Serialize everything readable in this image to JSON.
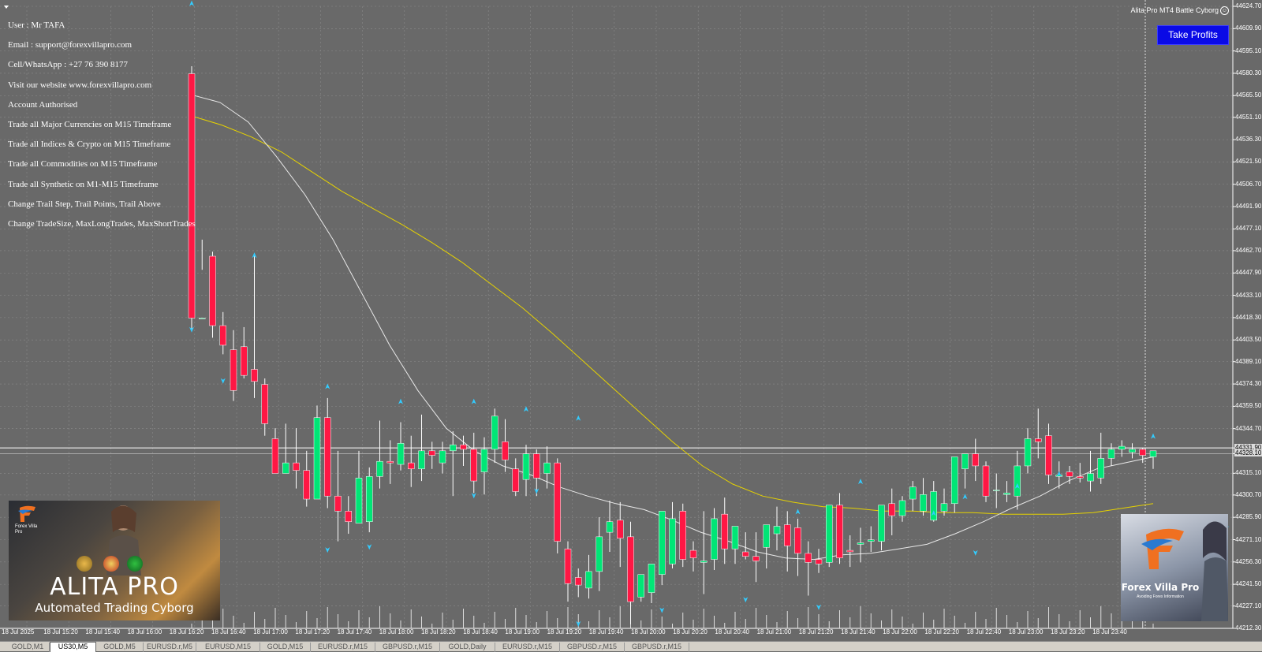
{
  "app": {
    "title": "Alita Pro MT4 Battle Cyborg"
  },
  "info_lines": [
    "User : Mr TAFA",
    "Email : support@forexvillapro.com",
    "Cell/WhatsApp : +27 76 390 8177",
    "Visit our website www.forexvillapro.com",
    "Account Authorised",
    "Trade all Major Currencies on M15 Timeframe",
    "Trade all Indices & Crypto on M15 Timeframe",
    "Trade all Commodities on M15 Timeframe",
    "Trade all Synthetic on M1-M15 Timeframe",
    "Change Trail Step, Trail Points, Trail Above",
    "Change TradeSize, MaxLongTrades, MaxShortTrades"
  ],
  "take_profits_label": "Take Profits",
  "logo_left": {
    "title": "ALITA PRO",
    "subtitle": "Automated Trading Cyborg",
    "brand": "Forex Villa Pro"
  },
  "logo_right": {
    "title": "Forex Villa Pro",
    "subtitle": "Avoiding Forex Information"
  },
  "price_axis": {
    "labels": [
      "44624.70",
      "44609.90",
      "44595.10",
      "44580.30",
      "44565.50",
      "44551.10",
      "44536.30",
      "44521.50",
      "44506.70",
      "44491.90",
      "44477.10",
      "44462.70",
      "44447.90",
      "44433.10",
      "44418.30",
      "44403.50",
      "44389.10",
      "44374.30",
      "44359.50",
      "44344.70",
      "44331.90",
      "44328.10",
      "44315.10",
      "44300.70",
      "44285.90",
      "44271.10",
      "44256.30",
      "44241.50",
      "44227.10",
      "44212.30"
    ],
    "highlighted": [
      "44331.90",
      "44328.10"
    ]
  },
  "time_axis": {
    "labels": [
      "18 Jul 2025",
      "18 Jul 15:20",
      "18 Jul 15:40",
      "18 Jul 16:00",
      "18 Jul 16:20",
      "18 Jul 16:40",
      "18 Jul 17:00",
      "18 Jul 17:20",
      "18 Jul 17:40",
      "18 Jul 18:00",
      "18 Jul 18:20",
      "18 Jul 18:40",
      "18 Jul 19:00",
      "18 Jul 19:20",
      "18 Jul 19:40",
      "18 Jul 20:00",
      "18 Jul 20:20",
      "18 Jul 20:40",
      "18 Jul 21:00",
      "18 Jul 21:20",
      "18 Jul 21:40",
      "18 Jul 22:00",
      "18 Jul 22:20",
      "18 Jul 22:40",
      "18 Jul 23:00",
      "18 Jul 23:20",
      "18 Jul 23:40"
    ]
  },
  "tabs": [
    {
      "label": "GOLD,M1",
      "active": false
    },
    {
      "label": "US30,M5",
      "active": true
    },
    {
      "label": "GOLD,M5",
      "active": false
    },
    {
      "label": "EURUSD.r,M5",
      "active": false
    },
    {
      "label": "EURUSD,M15",
      "active": false
    },
    {
      "label": "GOLD,M15",
      "active": false
    },
    {
      "label": "EURUSD.r,M15",
      "active": false
    },
    {
      "label": "GBPUSD.r,M15",
      "active": false
    },
    {
      "label": "GOLD,Daily",
      "active": false
    },
    {
      "label": "EURUSD.r,M15",
      "active": false
    },
    {
      "label": "GBPUSD.r,M15",
      "active": false
    },
    {
      "label": "GBPUSD.r,M15",
      "active": false
    }
  ],
  "colors": {
    "background": "#696969",
    "grid": "#8a8a8a",
    "bull_candle": "#00e676",
    "bear_candle": "#ff1744",
    "fast_ma": "#e8e8e8",
    "slow_ma": "#e6d200",
    "arrow": "#33ccff",
    "button": "#0a0ae6"
  },
  "chart_data": {
    "type": "candlestick",
    "symbol": "US30",
    "timeframe": "M5",
    "ylim": [
      44212.3,
      44624.7
    ],
    "candles": [
      [
        44580,
        44585,
        44418,
        44410
      ],
      [
        44418,
        44470,
        44418,
        44450
      ],
      [
        44459,
        44462,
        44413,
        44405
      ],
      [
        44413,
        44422,
        44400,
        44394
      ],
      [
        44397,
        44410,
        44370,
        44363
      ],
      [
        44399,
        44412,
        44380,
        44378
      ],
      [
        44384,
        44460,
        44376,
        44365
      ],
      [
        44374,
        44378,
        44348,
        44340
      ],
      [
        44338,
        44345,
        44315,
        44315
      ],
      [
        44315,
        44348,
        44322,
        44318
      ],
      [
        44322,
        44345,
        44317,
        44305
      ],
      [
        44317,
        44330,
        44298,
        44293
      ],
      [
        44298,
        44360,
        44352,
        44350
      ],
      [
        44352,
        44365,
        44300,
        44292
      ],
      [
        44300,
        44330,
        44290,
        44270
      ],
      [
        44290,
        44300,
        44283,
        44275
      ],
      [
        44282,
        44330,
        44312,
        44302
      ],
      [
        44283,
        44319,
        44313,
        44276
      ],
      [
        44313,
        44350,
        44323,
        44305
      ],
      [
        44323,
        44337,
        44322,
        44308
      ],
      [
        44321,
        44349,
        44335,
        44317
      ],
      [
        44322,
        44340,
        44318,
        44306
      ],
      [
        44318,
        44354,
        44330,
        44310
      ],
      [
        44330,
        44336,
        44327,
        44318
      ],
      [
        44322,
        44336,
        44330,
        44315
      ],
      [
        44330,
        44343,
        44334,
        44300
      ],
      [
        44334,
        44340,
        44331,
        44320
      ],
      [
        44331,
        44342,
        44310,
        44302
      ],
      [
        44316,
        44339,
        44331,
        44301
      ],
      [
        44331,
        44358,
        44353,
        44322
      ],
      [
        44336,
        44351,
        44324,
        44316
      ],
      [
        44318,
        44325,
        44303,
        44300
      ],
      [
        44311,
        44334,
        44328,
        44300
      ],
      [
        44328,
        44331,
        44312,
        44300
      ],
      [
        44315,
        44333,
        44322,
        44305
      ],
      [
        44322,
        44325,
        44270,
        44262
      ],
      [
        44265,
        44270,
        44242,
        44230
      ],
      [
        44246,
        44252,
        44241,
        44233
      ],
      [
        44239,
        44261,
        44250,
        44232
      ],
      [
        44250,
        44286,
        44273,
        44237
      ],
      [
        44276,
        44297,
        44283,
        44263
      ],
      [
        44284,
        44296,
        44272,
        44253
      ],
      [
        44273,
        44283,
        44230,
        44215
      ],
      [
        44233,
        44243,
        44248,
        44230
      ],
      [
        44236,
        44251,
        44255,
        44229
      ],
      [
        44248,
        44258,
        44290,
        44241
      ],
      [
        44255,
        44296,
        44285,
        44252
      ],
      [
        44290,
        44295,
        44258,
        44253
      ],
      [
        44264,
        44270,
        44259,
        44250
      ],
      [
        44256,
        44290,
        44257,
        44235
      ],
      [
        44258,
        44292,
        44285,
        44251
      ],
      [
        44288,
        44299,
        44265,
        44255
      ],
      [
        44265,
        44280,
        44280,
        44255
      ],
      [
        44263,
        44276,
        44260,
        44258
      ],
      [
        44260,
        44276,
        44257,
        44243
      ],
      [
        44266,
        44275,
        44281,
        44252
      ],
      [
        44275,
        44293,
        44280,
        44264
      ],
      [
        44281,
        44290,
        44267,
        44250
      ],
      [
        44279,
        44285,
        44262,
        44247
      ],
      [
        44262,
        44270,
        44256,
        44234
      ],
      [
        44258,
        44265,
        44255,
        44249
      ],
      [
        44256,
        44278,
        44294,
        44253
      ],
      [
        44294,
        44302,
        44259,
        44255
      ],
      [
        44264,
        44274,
        44263,
        44253
      ],
      [
        44268,
        44279,
        44269,
        44256
      ],
      [
        44270,
        44280,
        44271,
        44263
      ],
      [
        44270,
        44290,
        44294,
        44264
      ],
      [
        44295,
        44305,
        44287,
        44274
      ],
      [
        44287,
        44300,
        44297,
        44283
      ],
      [
        44298,
        44310,
        44306,
        44290
      ],
      [
        44290,
        44312,
        44301,
        44287
      ],
      [
        44284,
        44310,
        44303,
        44283
      ],
      [
        44290,
        44305,
        44295,
        44287
      ],
      [
        44295,
        44320,
        44326,
        44289
      ],
      [
        44318,
        44324,
        44328,
        44305
      ],
      [
        44328,
        44338,
        44320,
        44310
      ],
      [
        44320,
        44323,
        44300,
        44296
      ],
      [
        44304,
        44315,
        44304,
        44292
      ],
      [
        44301,
        44310,
        44302,
        44296
      ],
      [
        44300,
        44330,
        44320,
        44291
      ],
      [
        44320,
        44345,
        44338,
        44315
      ],
      [
        44338,
        44358,
        44336,
        44325
      ],
      [
        44340,
        44348,
        44314,
        44308
      ],
      [
        44313,
        44323,
        44314,
        44305
      ],
      [
        44316,
        44320,
        44313,
        44308
      ],
      [
        44313,
        44322,
        44312,
        44309
      ],
      [
        44310,
        44330,
        44315,
        44303
      ],
      [
        44312,
        44342,
        44325,
        44308
      ],
      [
        44325,
        44335,
        44331,
        44320
      ],
      [
        44331,
        44337,
        44333,
        44326
      ],
      [
        44329,
        44335,
        44331,
        44325
      ],
      [
        44331,
        44332,
        44327,
        44322
      ],
      [
        44326,
        44329,
        44330,
        44318
      ]
    ],
    "ma_fast": [
      44566,
      44561,
      44548,
      44525,
      44500,
      44470,
      44435,
      44400,
      44370,
      44345,
      44330,
      44320,
      44314,
      44306,
      44300,
      44295,
      44291,
      44284,
      44276,
      44270,
      44263,
      44259,
      44258,
      44261,
      44262,
      44265,
      44268,
      44275,
      44283,
      44292,
      44300,
      44310,
      44318,
      44322,
      44326
    ],
    "ma_slow": [
      44552,
      44546,
      44538,
      44528,
      44515,
      44502,
      44491,
      44480,
      44468,
      44455,
      44440,
      44425,
      44408,
      44390,
      44372,
      44354,
      44336,
      44320,
      44308,
      44300,
      44296,
      44293,
      44292,
      44290,
      44290,
      44289,
      44289,
      44288,
      44288,
      44288,
      44289,
      44292,
      44295
    ],
    "buy_arrows": [
      [
        0,
        44627
      ],
      [
        6,
        44460
      ],
      [
        13,
        44373
      ],
      [
        20,
        44363
      ],
      [
        27,
        44363
      ],
      [
        32,
        44358
      ],
      [
        37,
        44352
      ],
      [
        58,
        44290
      ],
      [
        64,
        44310
      ],
      [
        71,
        44289
      ],
      [
        74,
        44300
      ],
      [
        79,
        44307
      ],
      [
        83,
        44315
      ],
      [
        92,
        44340
      ],
      [
        100,
        44332
      ],
      [
        108,
        44366
      ],
      [
        119,
        44346
      ],
      [
        126,
        44345
      ]
    ],
    "sell_arrows": [
      [
        0,
        44410
      ],
      [
        3,
        44376
      ],
      [
        13,
        44264
      ],
      [
        17,
        44266
      ],
      [
        27,
        44300
      ],
      [
        33,
        44303
      ],
      [
        37,
        44215
      ],
      [
        45,
        44224
      ],
      [
        53,
        44231
      ],
      [
        60,
        44226
      ],
      [
        75,
        44262
      ],
      [
        99,
        44278
      ],
      [
        116,
        44300
      ],
      [
        121,
        44318
      ],
      [
        124,
        44300
      ]
    ]
  }
}
